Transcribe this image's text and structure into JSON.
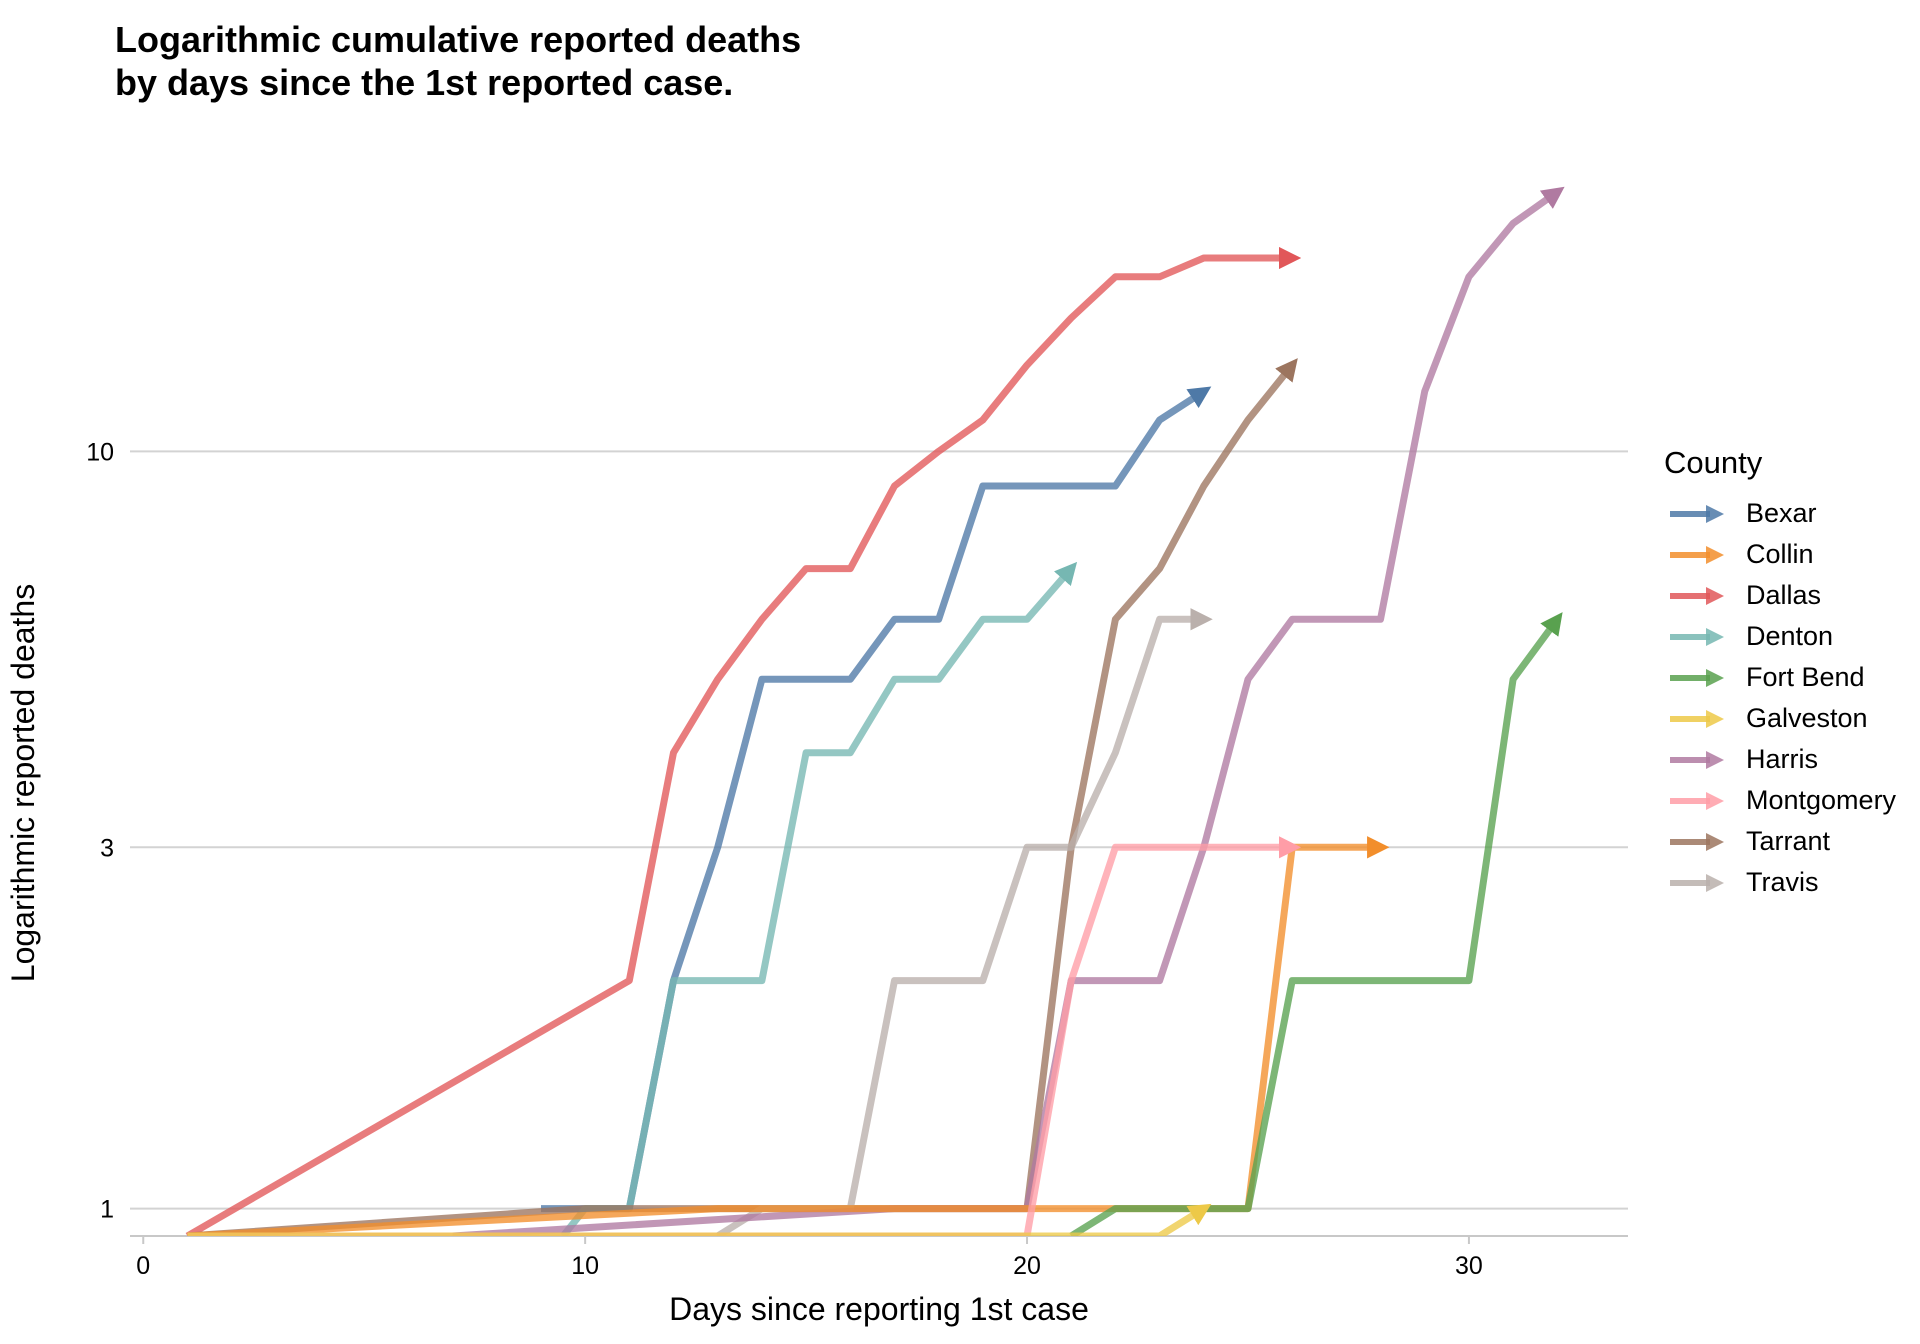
{
  "title_lines": [
    "Logarithmic cumulative reported deaths",
    "by days since the 1st reported case."
  ],
  "legend": {
    "title": "County"
  },
  "chart_data": {
    "type": "line",
    "title": "Logarithmic cumulative reported deaths by days since the 1st reported case.",
    "xlabel": "Days since reporting 1st case",
    "ylabel": "Logarithmic reported deaths",
    "y_scale": "log",
    "xlim": [
      -0.3,
      33.6
    ],
    "ylim": [
      0.92,
      25
    ],
    "x_ticks": [
      0,
      10,
      20,
      30
    ],
    "y_ticks": [
      1,
      3,
      10
    ],
    "grid": "horizontal major",
    "legend_position": "right",
    "series": [
      {
        "name": "Dallas",
        "color": "#e15759",
        "x": [
          1,
          11,
          12,
          13,
          14,
          15,
          16,
          17,
          18,
          19,
          20,
          21,
          22,
          23,
          24,
          25,
          26
        ],
        "y": [
          0.92,
          2,
          4,
          5,
          6,
          7,
          7,
          9,
          10,
          11,
          13,
          15,
          17,
          17,
          18,
          18,
          18
        ]
      },
      {
        "name": "Bexar",
        "color": "#4e79a7",
        "x": [
          9,
          11,
          12,
          13,
          14,
          15,
          16,
          17,
          18,
          19,
          20,
          21,
          22,
          23,
          24
        ],
        "y": [
          1,
          1,
          2,
          3,
          5,
          5,
          5,
          6,
          6,
          9,
          9,
          9,
          9,
          11,
          12
        ]
      },
      {
        "name": "Denton",
        "color": "#76b7b2",
        "x": [
          9.5,
          10,
          11,
          12,
          13,
          14,
          15,
          16,
          17,
          18,
          19,
          20,
          21
        ],
        "y": [
          0.92,
          1,
          1,
          2,
          2,
          2,
          4,
          4,
          5,
          5,
          6,
          6,
          7
        ]
      },
      {
        "name": "Tarrant",
        "color": "#9c755f",
        "x": [
          1,
          10,
          20,
          21,
          22,
          23,
          24,
          25,
          26
        ],
        "y": [
          0.92,
          1,
          1,
          3,
          6,
          7,
          9,
          11,
          13
        ]
      },
      {
        "name": "Travis",
        "color": "#bab0ac",
        "x": [
          13,
          14,
          16,
          17,
          18,
          19,
          20,
          21,
          22,
          23,
          24
        ],
        "y": [
          0.92,
          1,
          1,
          2,
          2,
          2,
          3,
          3,
          4,
          6,
          6
        ]
      },
      {
        "name": "Harris",
        "color": "#b07aa1",
        "x": [
          7,
          17,
          20,
          21,
          22,
          23,
          24,
          25,
          26,
          27,
          28,
          29,
          30,
          31,
          32
        ],
        "y": [
          0.92,
          1,
          1,
          2,
          2,
          2,
          3,
          5,
          6,
          6,
          6,
          12,
          17,
          20,
          22
        ]
      },
      {
        "name": "Collin",
        "color": "#f28e2b",
        "x": [
          1,
          13,
          22,
          25,
          26,
          27,
          28
        ],
        "y": [
          0.92,
          1,
          1,
          1,
          3,
          3,
          3
        ]
      },
      {
        "name": "Montgomery",
        "color": "#ff9da7",
        "x": [
          1,
          20,
          21,
          22,
          23,
          24,
          25,
          26
        ],
        "y": [
          0.92,
          0.92,
          2,
          3,
          3,
          3,
          3,
          3
        ]
      },
      {
        "name": "Fort Bend",
        "color": "#59a14f",
        "x": [
          21,
          22,
          25,
          26,
          27,
          28,
          29,
          30,
          31,
          32
        ],
        "y": [
          0.92,
          1,
          1,
          2,
          2,
          2,
          2,
          2,
          5,
          6
        ]
      },
      {
        "name": "Galveston",
        "color": "#edc948",
        "x": [
          1,
          23,
          24
        ],
        "y": [
          0.92,
          0.92,
          1
        ]
      }
    ],
    "legend_order": [
      "Bexar",
      "Collin",
      "Dallas",
      "Denton",
      "Fort Bend",
      "Galveston",
      "Harris",
      "Montgomery",
      "Tarrant",
      "Travis"
    ]
  }
}
